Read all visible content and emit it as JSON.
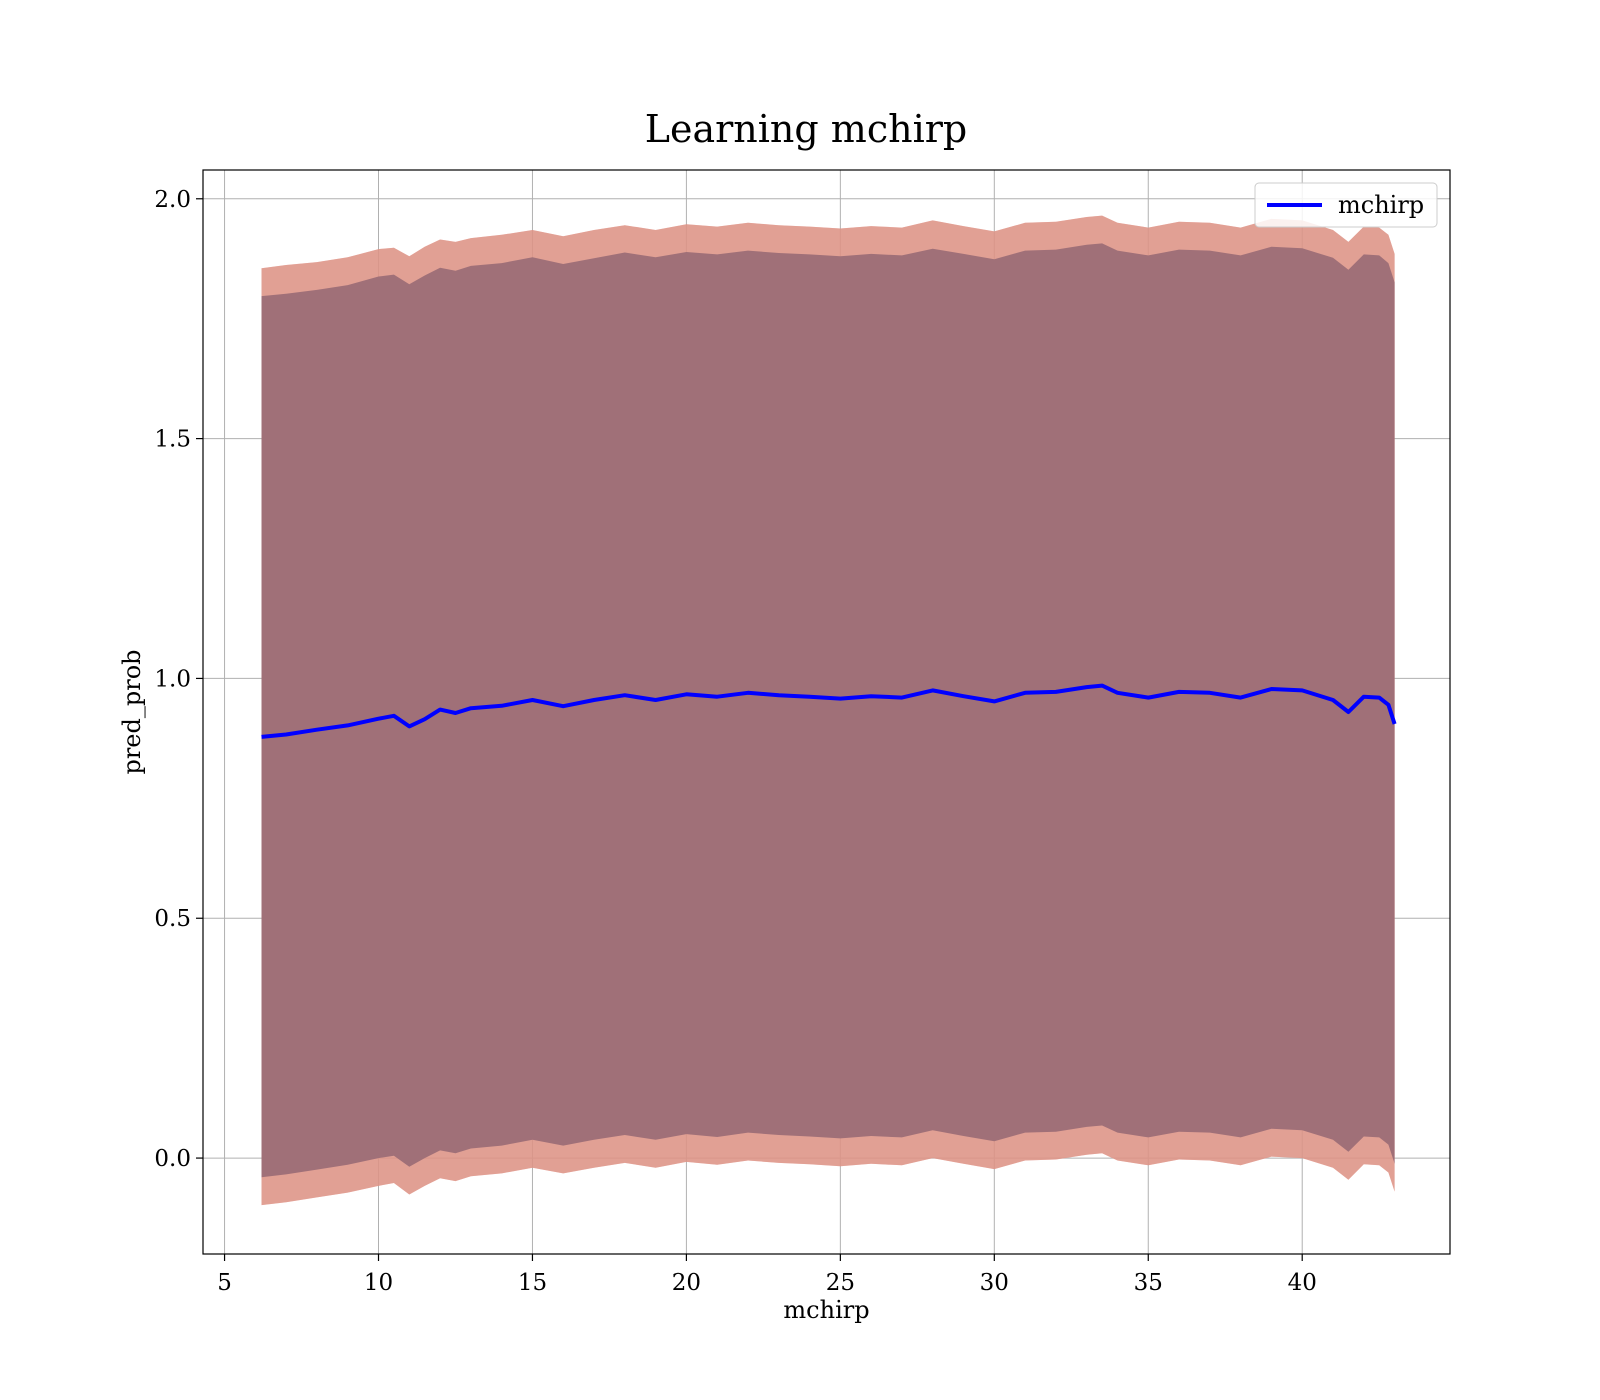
{
  "chart_data": {
    "type": "line",
    "title": "Learning mchirp",
    "xlabel": "mchirp",
    "ylabel": "pred_prob",
    "xlim": [
      4.3,
      44.8
    ],
    "ylim": [
      -0.2,
      2.06
    ],
    "xticks": [
      "5",
      "10",
      "15",
      "20",
      "25",
      "30",
      "35",
      "40"
    ],
    "yticks": [
      "0.0",
      "0.5",
      "1.0",
      "1.5",
      "2.0"
    ],
    "grid": true,
    "legend_position": "top-right",
    "colors": {
      "line": "#0000ff",
      "outer_band": "#ff9999",
      "inner_band": "#a07078",
      "mid_band": "#c8907a",
      "grid": "#b0b0b0",
      "frame": "#000000"
    },
    "series": [
      {
        "name": "mchirp",
        "x": [
          6.2,
          7.0,
          8.0,
          9.0,
          10.0,
          10.5,
          11.0,
          11.5,
          12.0,
          12.5,
          13.0,
          14.0,
          15.0,
          16.0,
          17.0,
          18.0,
          19.0,
          20.0,
          21.0,
          22.0,
          23.0,
          24.0,
          25.0,
          26.0,
          27.0,
          28.0,
          29.0,
          30.0,
          31.0,
          32.0,
          33.0,
          33.5,
          34.0,
          35.0,
          36.0,
          37.0,
          38.0,
          39.0,
          40.0,
          41.0,
          41.5,
          42.0,
          42.5,
          42.8,
          43.0
        ],
        "y": [
          0.878,
          0.883,
          0.893,
          0.902,
          0.916,
          0.922,
          0.9,
          0.915,
          0.935,
          0.928,
          0.938,
          0.943,
          0.955,
          0.942,
          0.955,
          0.965,
          0.955,
          0.967,
          0.962,
          0.97,
          0.965,
          0.962,
          0.958,
          0.963,
          0.96,
          0.975,
          0.963,
          0.952,
          0.97,
          0.972,
          0.982,
          0.985,
          0.97,
          0.96,
          0.972,
          0.97,
          0.96,
          0.978,
          0.975,
          0.955,
          0.93,
          0.962,
          0.96,
          0.945,
          0.905
        ]
      }
    ],
    "bands": [
      {
        "x": [
          6.2,
          7.0,
          8.0,
          9.0,
          10.0,
          10.5,
          11.0,
          11.5,
          12.0,
          12.5,
          13.0,
          14.0,
          15.0,
          16.0,
          17.0,
          18.0,
          19.0,
          20.0,
          21.0,
          22.0,
          23.0,
          24.0,
          25.0,
          26.0,
          27.0,
          28.0,
          29.0,
          30.0,
          31.0,
          32.0,
          33.0,
          33.5,
          34.0,
          35.0,
          36.0,
          37.0,
          38.0,
          39.0,
          40.0,
          41.0,
          41.5,
          42.0,
          42.5,
          42.8,
          43.0
        ],
        "upper": [
          1.855,
          1.862,
          1.868,
          1.878,
          1.895,
          1.898,
          1.88,
          1.9,
          1.915,
          1.91,
          1.918,
          1.925,
          1.935,
          1.922,
          1.935,
          1.945,
          1.935,
          1.947,
          1.942,
          1.95,
          1.945,
          1.942,
          1.938,
          1.943,
          1.94,
          1.955,
          1.943,
          1.932,
          1.95,
          1.952,
          1.962,
          1.965,
          1.95,
          1.94,
          1.952,
          1.95,
          1.94,
          1.958,
          1.955,
          1.935,
          1.91,
          1.942,
          1.94,
          1.925,
          1.885
        ],
        "lower": [
          -0.098,
          -0.092,
          -0.082,
          -0.072,
          -0.058,
          -0.052,
          -0.076,
          -0.058,
          -0.042,
          -0.048,
          -0.038,
          -0.032,
          -0.02,
          -0.032,
          -0.02,
          -0.01,
          -0.02,
          -0.008,
          -0.014,
          -0.005,
          -0.01,
          -0.013,
          -0.017,
          -0.012,
          -0.015,
          0.0,
          -0.012,
          -0.023,
          -0.005,
          -0.003,
          0.007,
          0.01,
          -0.005,
          -0.015,
          -0.003,
          -0.005,
          -0.015,
          0.003,
          0.0,
          -0.02,
          -0.045,
          -0.013,
          -0.015,
          -0.03,
          -0.07
        ]
      },
      {
        "x": [
          6.2,
          7.0,
          8.0,
          9.0,
          10.0,
          10.5,
          11.0,
          11.5,
          12.0,
          12.5,
          13.0,
          14.0,
          15.0,
          16.0,
          17.0,
          18.0,
          19.0,
          20.0,
          21.0,
          22.0,
          23.0,
          24.0,
          25.0,
          26.0,
          27.0,
          28.0,
          29.0,
          30.0,
          31.0,
          32.0,
          33.0,
          33.5,
          34.0,
          35.0,
          36.0,
          37.0,
          38.0,
          39.0,
          40.0,
          41.0,
          41.5,
          42.0,
          42.5,
          42.8,
          43.0
        ],
        "upper": [
          1.797,
          1.802,
          1.81,
          1.82,
          1.838,
          1.842,
          1.822,
          1.84,
          1.856,
          1.85,
          1.86,
          1.866,
          1.878,
          1.864,
          1.876,
          1.888,
          1.878,
          1.889,
          1.884,
          1.892,
          1.887,
          1.884,
          1.88,
          1.885,
          1.882,
          1.896,
          1.885,
          1.874,
          1.892,
          1.894,
          1.904,
          1.907,
          1.892,
          1.882,
          1.894,
          1.892,
          1.882,
          1.9,
          1.897,
          1.877,
          1.852,
          1.884,
          1.882,
          1.866,
          1.826
        ],
        "lower": [
          -0.04,
          -0.034,
          -0.024,
          -0.014,
          0.0,
          0.005,
          -0.018,
          0.0,
          0.016,
          0.01,
          0.02,
          0.026,
          0.038,
          0.026,
          0.038,
          0.048,
          0.038,
          0.05,
          0.044,
          0.053,
          0.048,
          0.045,
          0.041,
          0.046,
          0.043,
          0.058,
          0.046,
          0.035,
          0.053,
          0.055,
          0.065,
          0.068,
          0.053,
          0.043,
          0.055,
          0.053,
          0.043,
          0.061,
          0.058,
          0.038,
          0.013,
          0.045,
          0.043,
          0.028,
          -0.012
        ]
      }
    ]
  }
}
